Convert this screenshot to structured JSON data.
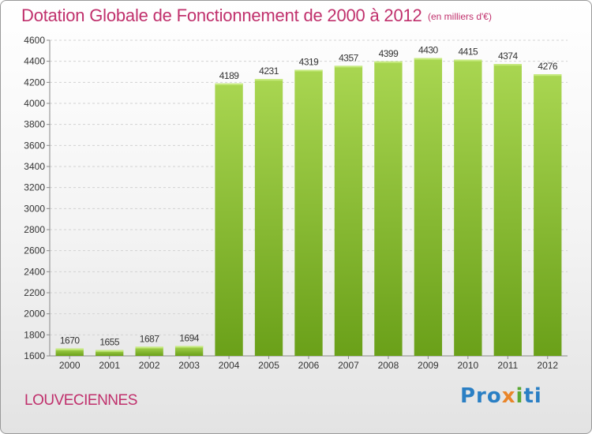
{
  "header": {
    "title": "Dotation Globale de Fonctionnement de 2000 à 2012",
    "unit_note": "(en milliers d'€)"
  },
  "footer": {
    "city": "LOUVECIENNES",
    "logo_text": "Proxiti",
    "logo_parts": [
      "Pro",
      "x",
      "i",
      "ti"
    ]
  },
  "colors": {
    "title": "#c0306c",
    "bar_light": "#a9d651",
    "bar_dark": "#6aa019",
    "logo_blue": "#2a7fc4",
    "logo_orange": "#e9852a",
    "logo_green": "#5aa832"
  },
  "chart_data": {
    "type": "bar",
    "title": "Dotation Globale de Fonctionnement de 2000 à 2012",
    "subtitle": "(en milliers d'€)",
    "xlabel": "",
    "ylabel": "",
    "categories": [
      "2000",
      "2001",
      "2002",
      "2003",
      "2004",
      "2005",
      "2006",
      "2007",
      "2008",
      "2009",
      "2010",
      "2011",
      "2012"
    ],
    "values": [
      1670,
      1655,
      1687,
      1694,
      4189,
      4231,
      4319,
      4357,
      4399,
      4430,
      4415,
      4374,
      4276
    ],
    "ylim": [
      1600,
      4600
    ],
    "yticks": [
      1600,
      1800,
      2000,
      2200,
      2400,
      2600,
      2800,
      3000,
      3200,
      3400,
      3600,
      3800,
      4000,
      4200,
      4400,
      4600
    ],
    "grid": true,
    "legend": "none"
  }
}
